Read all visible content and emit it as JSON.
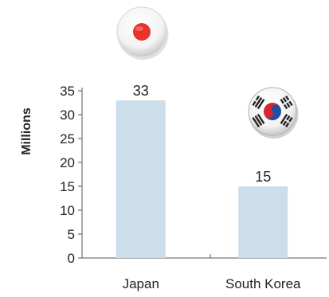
{
  "chart_data": {
    "type": "bar",
    "categories": [
      "Japan",
      "South Korea"
    ],
    "values": [
      33,
      15
    ],
    "data_labels": [
      "33",
      "15"
    ],
    "ylabel": "Millions",
    "xlabel": "",
    "title": "",
    "ylim": [
      0,
      35
    ],
    "yticks": [
      0,
      5,
      10,
      15,
      20,
      25,
      30,
      35
    ],
    "bar_color": "#cddeeb",
    "grid": false,
    "legend": "none",
    "flag_icons": [
      "japan-flag-icon",
      "south-korea-flag-icon"
    ]
  }
}
